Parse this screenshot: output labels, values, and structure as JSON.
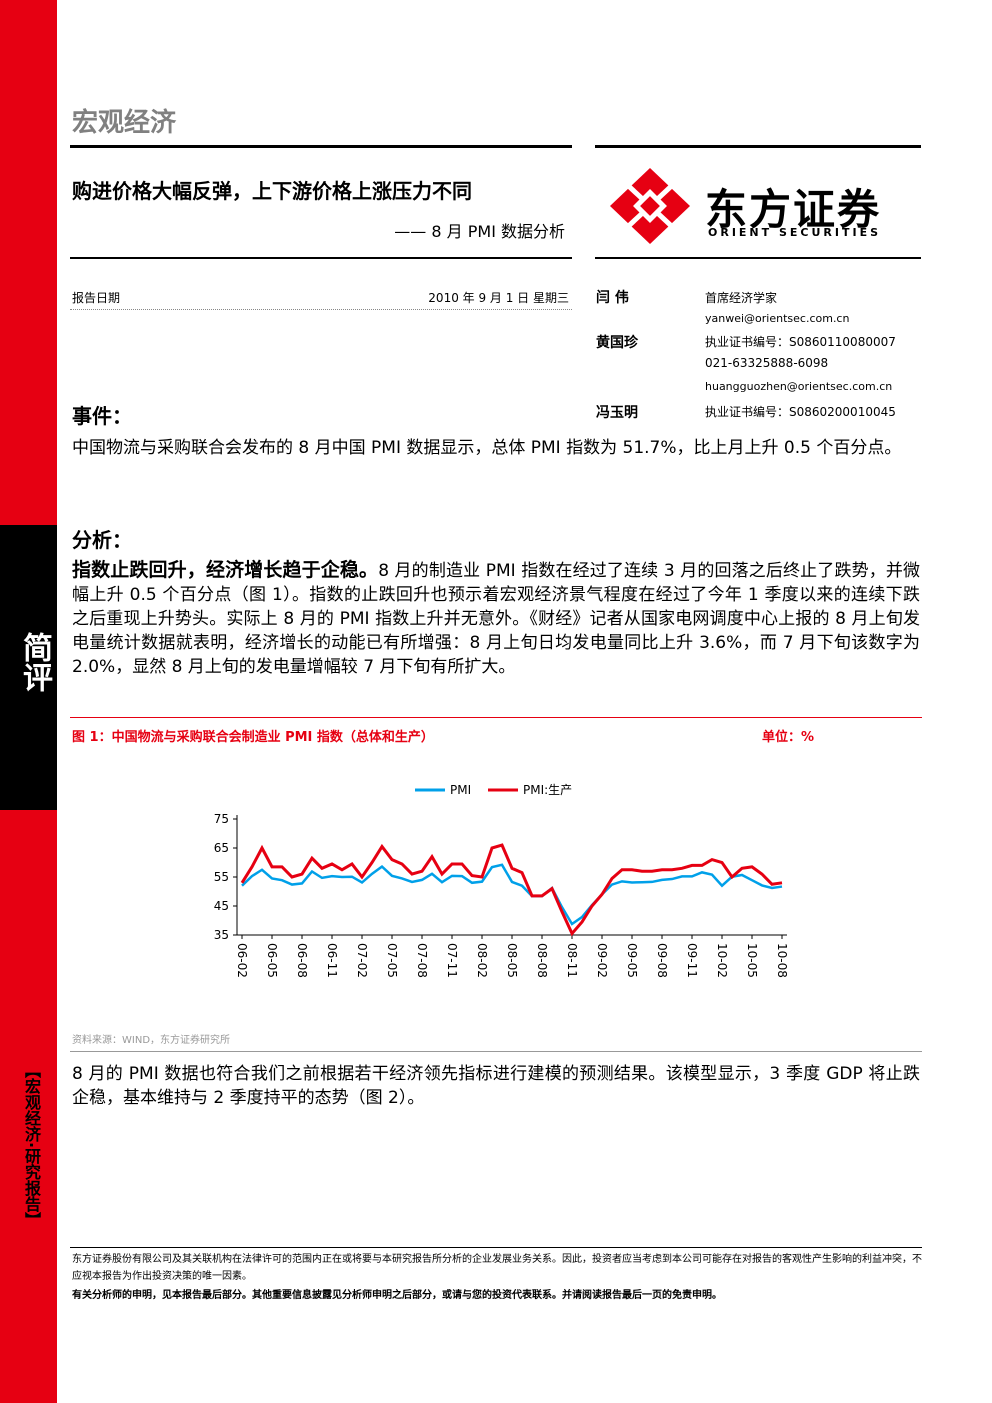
{
  "side": {
    "category": "简评",
    "series_label": "【宏观经济·研究报告】"
  },
  "header": {
    "section": "宏观经济",
    "title": "购进价格大幅反弹，上下游价格上涨压力不同",
    "subtitle": "—— 8 月 PMI 数据分析",
    "logo": {
      "name": "东方证券",
      "english": "ORIENT SECURITIES"
    }
  },
  "report_date": {
    "label": "报告日期",
    "value": "2010 年 9 月 1 日 星期三"
  },
  "analysts": [
    {
      "name": "闫 伟",
      "lines": [
        "首席经济学家",
        "yanwei@orientsec.com.cn"
      ]
    },
    {
      "name": "黄国珍",
      "lines": [
        "执业证书编号：S0860110080007",
        "021-63325888-6098",
        "huangguozhen@orientsec.com.cn"
      ]
    },
    {
      "name": "冯玉明",
      "lines": [
        "执业证书编号：S0860200010045"
      ]
    }
  ],
  "sections": [
    {
      "heading": "事件：",
      "text": "中国物流与采购联合会发布的 8 月中国 PMI 数据显示，总体 PMI 指数为 51.7%，比上月上升 0.5 个百分点。"
    },
    {
      "heading": "分析：",
      "lead": "指数止跌回升，经济增长趋于企稳。",
      "text": "8 月的制造业 PMI 指数在经过了连续 3 月的回落之后终止了跌势，并微幅上升 0.5 个百分点（图 1）。指数的止跌回升也预示着宏观经济景气程度在经过了今年 1 季度以来的连续下跌之后重现上升势头。实际上 8 月的 PMI 指数上升并无意外。《财经》记者从国家电网调度中心上报的 8 月上旬发电量统计数据就表明，经济增长的动能已有所增强：8 月上旬日均发电量同比上升 3.6%，而 7 月下旬该数字为 2.0%，显然 8 月上旬的发电量增幅较 7 月下旬有所扩大。"
    }
  ],
  "figure": {
    "caption": "图 1：中国物流与采购联合会制造业 PMI 指数（总体和生产）",
    "unit": "单位：%",
    "source": "资料来源：WIND，东方证券研究所"
  },
  "chart_data": {
    "type": "line",
    "categories": [
      "06-02",
      null,
      null,
      "06-05",
      null,
      null,
      "06-08",
      null,
      null,
      "06-11",
      null,
      null,
      "07-02",
      null,
      null,
      "07-05",
      null,
      null,
      "07-08",
      null,
      null,
      "07-11",
      null,
      null,
      "08-02",
      null,
      null,
      "08-05",
      null,
      null,
      "08-08",
      null,
      null,
      "08-11",
      null,
      null,
      "09-02",
      null,
      null,
      "09-05",
      null,
      null,
      "09-08",
      null,
      null,
      "09-11",
      null,
      null,
      "10-02",
      null,
      null,
      "10-05",
      null,
      null,
      "10-08"
    ],
    "series": [
      {
        "name": "PMI",
        "color": "#00a0e9",
        "values": [
          52.0,
          55.3,
          57.5,
          54.5,
          53.9,
          52.4,
          52.8,
          56.9,
          54.7,
          55.3,
          55.0,
          55.1,
          53.1,
          56.1,
          58.6,
          55.4,
          54.5,
          53.3,
          54.0,
          56.1,
          53.2,
          55.4,
          55.3,
          53.0,
          53.4,
          58.4,
          59.2,
          53.3,
          52.0,
          48.4,
          48.4,
          51.2,
          44.6,
          38.8,
          41.2,
          45.3,
          49.0,
          52.4,
          53.5,
          53.1,
          53.2,
          53.3,
          54.0,
          54.3,
          55.2,
          55.2,
          56.6,
          55.8,
          52.0,
          55.1,
          55.7,
          53.9,
          52.1,
          51.2,
          51.7
        ]
      },
      {
        "name": "PMI:生产",
        "color": "#e60012",
        "values": [
          53,
          58.5,
          65,
          58.5,
          58.5,
          55,
          56,
          61.5,
          58,
          59.5,
          57.5,
          59.5,
          55,
          60,
          65.5,
          61,
          59.5,
          56,
          57,
          62,
          56,
          59.5,
          59.5,
          55.5,
          55,
          65,
          66,
          58,
          56.5,
          48.5,
          48.5,
          51,
          43,
          35.5,
          39.5,
          45,
          49,
          54.5,
          57.5,
          57.5,
          57,
          57,
          57.5,
          57.5,
          58,
          59,
          59,
          61,
          60,
          55,
          58,
          58.5,
          56,
          52.5,
          53
        ]
      }
    ],
    "ylim": [
      35,
      75
    ],
    "yticks": [
      35,
      45,
      55,
      65,
      75
    ],
    "legend": "top"
  },
  "closing": {
    "text": "8 月的 PMI 数据也符合我们之前根据若干经济领先指标进行建模的预测结果。该模型显示，3 季度 GDP 将止跌企稳，基本维持与 2 季度持平的态势（图 2）。"
  },
  "footer": {
    "disclosure": "东方证券股份有限公司及其关联机构在法律许可的范围内正在或将要与本研究报告所分析的企业发展业务关系。因此，投资者应当考虑到本公司可能存在对报告的客观性产生影响的利益冲突，不应视本报告为作出投资决策的唯一因素。",
    "notice": "有关分析师的申明，见本报告最后部分。其他重要信息披露见分析师申明之后部分，或请与您的投资代表联系。并请阅读报告最后一页的免责申明。"
  }
}
